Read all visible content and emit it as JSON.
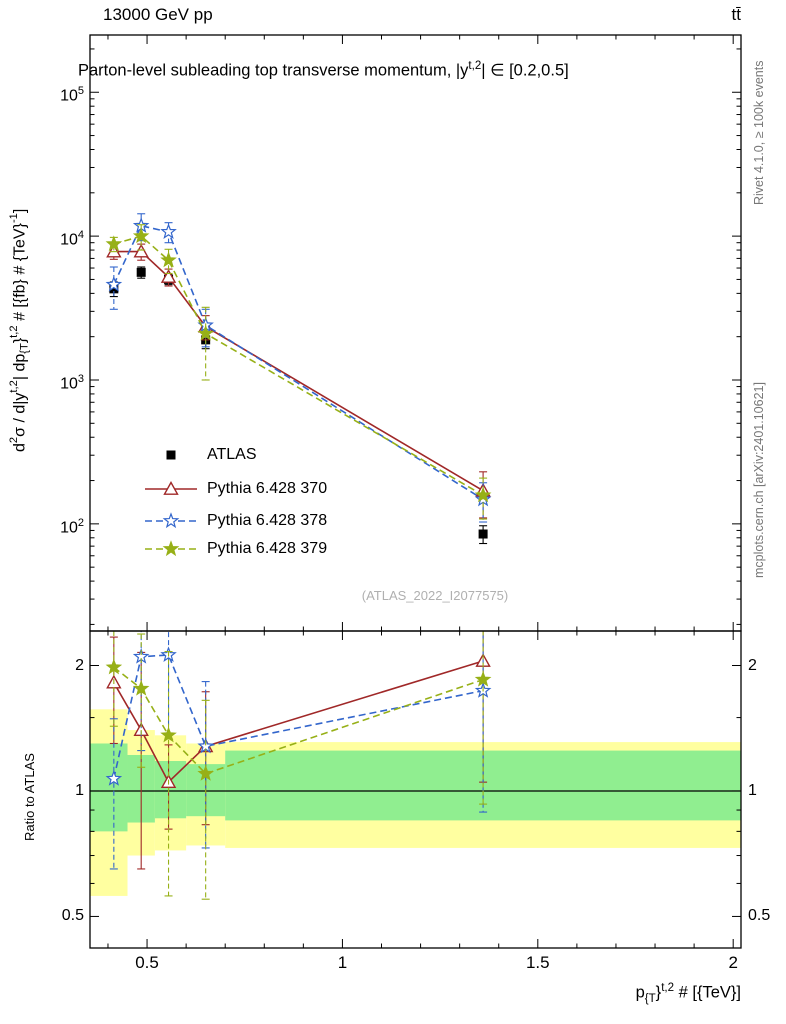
{
  "header": {
    "left": "13000 GeV pp",
    "right": "tt̄"
  },
  "titles": {
    "plot_title_html": "Parton-level subleading top transverse momentum, |y<sup>t,2</sup>| ∈ [0.2,0.5]",
    "y_label_html": "d<sup>2</sup>σ / d|y<sup>t,2</sup>| dp<sub>{T</sub>}<sup>t,2</sup> # [{fb} # {TeV}<sup>-1</sup>]",
    "x_label_html": "p<sub>{T</sub>}<sup>t,2</sup> # [{TeV}]",
    "ratio_label": "Ratio to ATLAS",
    "watermark": "(ATLAS_2022_I2077575)"
  },
  "side_notes": {
    "right_top": "Rivet 4.1.0, ≥ 100k events",
    "right_bottom": "mcplots.cern.ch [arXiv:2401.10621]"
  },
  "chart_data": {
    "type": "line",
    "title": "Parton-level subleading top transverse momentum, |y^t,2| in [0.2,0.5]",
    "xlabel": "pT^t,2 [TeV]",
    "ylabel": "d2sigma / d|y^t,2| dpT^t,2 [fb/TeV]",
    "x": [
      0.415,
      0.485,
      0.555,
      0.65,
      1.36
    ],
    "x_range": [
      0.354,
      2.02
    ],
    "x_ticks": {
      "major": [
        0.5,
        1,
        1.5,
        2
      ],
      "labels": [
        "0.5",
        "1",
        "1.5",
        "2"
      ],
      "minor_step": 0.1
    },
    "main_axis": {
      "scale": "log",
      "ylim": [
        18,
        250000
      ],
      "major_ticks": [
        100,
        1000,
        10000,
        100000
      ]
    },
    "ratio_axis": {
      "scale": "log",
      "ylim": [
        0.42,
        2.42
      ],
      "major_ticks": [
        0.5,
        1,
        2
      ],
      "minor_ticks": [
        0.6,
        0.7,
        0.8,
        0.9,
        1.5
      ]
    },
    "series": [
      {
        "name": "ATLAS",
        "color": "#000000",
        "marker": "square",
        "line": "none",
        "values": [
          4300,
          5600,
          5000,
          1900,
          85
        ],
        "errors": [
          500,
          500,
          400,
          250,
          12
        ]
      },
      {
        "name": "Pythia 6.428 370",
        "color": "#a02828",
        "marker": "triangle-open",
        "line": "solid",
        "values": [
          7800,
          7800,
          5200,
          2350,
          170
        ],
        "errors": [
          900,
          1000,
          700,
          450,
          60
        ],
        "ratio": [
          1.82,
          1.4,
          1.05,
          1.28,
          2.05
        ],
        "ratio_errors": [
          0.52,
          0.75,
          0.24,
          0.45,
          1.0
        ]
      },
      {
        "name": "Pythia 6.428 378",
        "color": "#3366cc",
        "marker": "star-open",
        "line": "dashed",
        "values": [
          4600,
          11800,
          10700,
          2400,
          148
        ],
        "errors": [
          1500,
          2500,
          1700,
          700,
          45
        ],
        "ratio": [
          1.07,
          2.1,
          2.12,
          1.28,
          1.74
        ],
        "ratio_errors": [
          0.42,
          0.85,
          0.75,
          0.55,
          0.85
        ]
      },
      {
        "name": "Pythia 6.428 379",
        "color": "#97b017",
        "marker": "star-filled",
        "line": "dashed",
        "values": [
          8800,
          10000,
          6800,
          2100,
          158
        ],
        "errors": [
          1000,
          2000,
          1300,
          1100,
          50
        ],
        "ratio": [
          1.98,
          1.76,
          1.36,
          1.1,
          1.85
        ],
        "ratio_errors": [
          0.55,
          0.62,
          0.8,
          0.55,
          0.92
        ]
      }
    ],
    "ratio_bands": {
      "edges": [
        0.354,
        0.45,
        0.52,
        0.6,
        0.7,
        2.02
      ],
      "yellow": {
        "color": "#ffffa0",
        "lo": [
          0.56,
          0.7,
          0.72,
          0.74,
          0.73
        ],
        "hi": [
          1.57,
          1.4,
          1.36,
          1.3,
          1.31
        ]
      },
      "green": {
        "color": "#90ee90",
        "lo": [
          0.8,
          0.84,
          0.86,
          0.87,
          0.85
        ],
        "hi": [
          1.3,
          1.22,
          1.18,
          1.16,
          1.25
        ]
      }
    },
    "legend": {
      "position": "left-middle",
      "items": [
        "ATLAS",
        "Pythia 6.428 370",
        "Pythia 6.428 378",
        "Pythia 6.428 379"
      ]
    }
  }
}
